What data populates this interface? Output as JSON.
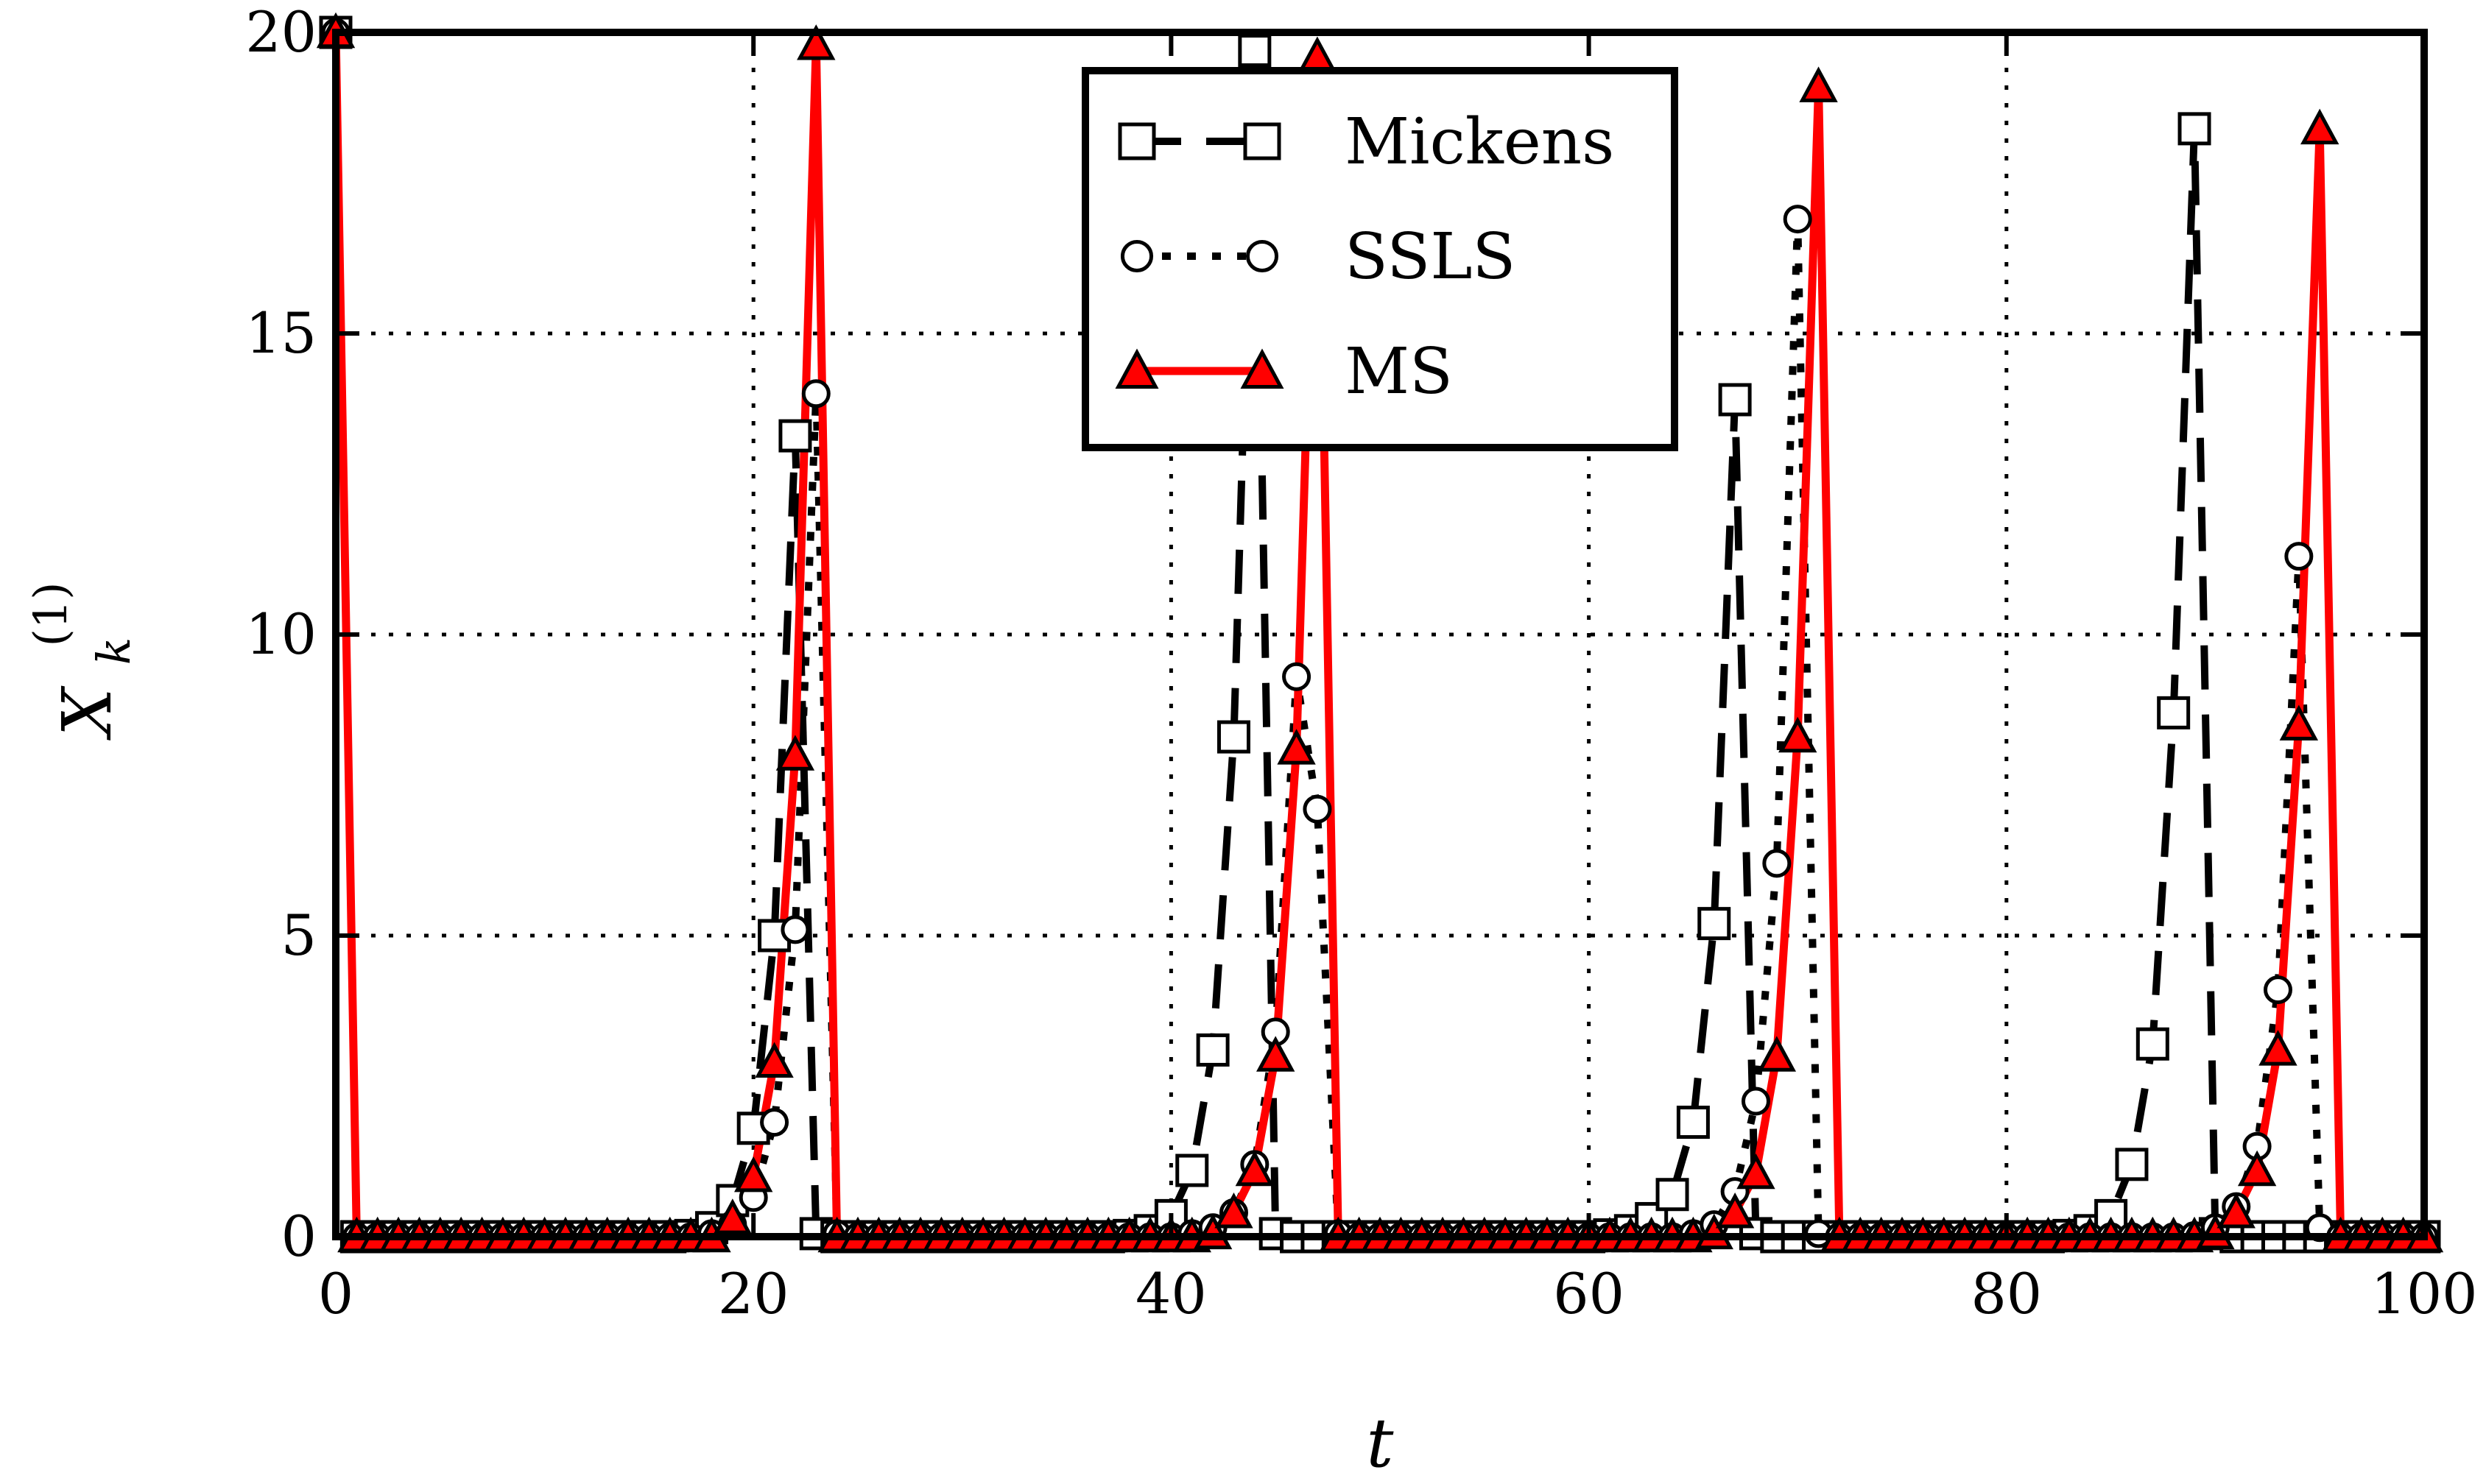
{
  "chart_data": {
    "type": "line",
    "xlabel": "t",
    "ylabel": "X",
    "ylabel_superscript": "(1)",
    "ylabel_subscript": "k",
    "xlim": [
      0,
      100
    ],
    "ylim": [
      0,
      20
    ],
    "xticks": [
      0,
      20,
      40,
      60,
      80,
      100
    ],
    "yticks": [
      0,
      5,
      10,
      15,
      20
    ],
    "grid": true,
    "legend_position": "top-center",
    "series": [
      {
        "name": "Mickens",
        "color": "#000000",
        "marker": "square",
        "linestyle": "dashed",
        "points": [
          [
            0,
            20
          ],
          [
            1,
            0
          ],
          [
            2,
            0
          ],
          [
            3,
            0
          ],
          [
            4,
            0
          ],
          [
            5,
            0
          ],
          [
            6,
            0
          ],
          [
            7,
            0
          ],
          [
            8,
            0
          ],
          [
            9,
            0
          ],
          [
            10,
            0
          ],
          [
            11,
            0
          ],
          [
            12,
            0
          ],
          [
            13,
            0
          ],
          [
            14,
            0
          ],
          [
            15,
            0
          ],
          [
            16,
            0
          ],
          [
            17,
            0.02
          ],
          [
            18,
            0.15
          ],
          [
            19,
            0.6
          ],
          [
            20,
            1.8
          ],
          [
            21,
            5.0
          ],
          [
            22,
            13.3
          ],
          [
            23,
            0.05
          ],
          [
            24,
            0
          ],
          [
            25,
            0
          ],
          [
            26,
            0
          ],
          [
            27,
            0
          ],
          [
            28,
            0
          ],
          [
            29,
            0
          ],
          [
            30,
            0
          ],
          [
            31,
            0
          ],
          [
            32,
            0
          ],
          [
            33,
            0
          ],
          [
            34,
            0
          ],
          [
            35,
            0
          ],
          [
            36,
            0
          ],
          [
            37,
            0
          ],
          [
            38,
            0.02
          ],
          [
            39,
            0.1
          ],
          [
            40,
            0.35
          ],
          [
            41,
            1.1
          ],
          [
            42,
            3.1
          ],
          [
            43,
            8.3
          ],
          [
            44,
            19.7
          ],
          [
            45,
            0.05
          ],
          [
            46,
            0
          ],
          [
            47,
            0
          ],
          [
            48,
            0
          ],
          [
            49,
            0
          ],
          [
            50,
            0
          ],
          [
            51,
            0
          ],
          [
            52,
            0
          ],
          [
            53,
            0
          ],
          [
            54,
            0
          ],
          [
            55,
            0
          ],
          [
            56,
            0
          ],
          [
            57,
            0
          ],
          [
            58,
            0
          ],
          [
            59,
            0
          ],
          [
            60,
            0
          ],
          [
            61,
            0.03
          ],
          [
            62,
            0.1
          ],
          [
            63,
            0.3
          ],
          [
            64,
            0.7
          ],
          [
            65,
            1.9
          ],
          [
            66,
            5.2
          ],
          [
            67,
            13.9
          ],
          [
            68,
            0.05
          ],
          [
            69,
            0
          ],
          [
            70,
            0
          ],
          [
            71,
            0
          ],
          [
            72,
            0
          ],
          [
            73,
            0
          ],
          [
            74,
            0
          ],
          [
            75,
            0
          ],
          [
            76,
            0
          ],
          [
            77,
            0
          ],
          [
            78,
            0
          ],
          [
            79,
            0
          ],
          [
            80,
            0
          ],
          [
            81,
            0
          ],
          [
            82,
            0
          ],
          [
            83,
            0.02
          ],
          [
            84,
            0.1
          ],
          [
            85,
            0.35
          ],
          [
            86,
            1.2
          ],
          [
            87,
            3.2
          ],
          [
            88,
            8.7
          ],
          [
            89,
            18.4
          ],
          [
            90,
            0.05
          ],
          [
            91,
            0
          ],
          [
            92,
            0
          ],
          [
            93,
            0
          ],
          [
            94,
            0
          ],
          [
            95,
            0
          ],
          [
            96,
            0
          ],
          [
            97,
            0
          ],
          [
            98,
            0
          ],
          [
            99,
            0
          ],
          [
            100,
            0
          ]
        ]
      },
      {
        "name": "SSLS",
        "color": "#000000",
        "marker": "circle",
        "linestyle": "dotted",
        "points": [
          [
            0,
            20
          ],
          [
            1,
            0
          ],
          [
            2,
            0
          ],
          [
            3,
            0
          ],
          [
            4,
            0
          ],
          [
            5,
            0
          ],
          [
            6,
            0
          ],
          [
            7,
            0
          ],
          [
            8,
            0
          ],
          [
            9,
            0
          ],
          [
            10,
            0
          ],
          [
            11,
            0
          ],
          [
            12,
            0
          ],
          [
            13,
            0
          ],
          [
            14,
            0
          ],
          [
            15,
            0
          ],
          [
            16,
            0
          ],
          [
            17,
            0
          ],
          [
            18,
            0.05
          ],
          [
            19,
            0.2
          ],
          [
            20,
            0.65
          ],
          [
            21,
            1.9
          ],
          [
            22,
            5.1
          ],
          [
            23,
            14.0
          ],
          [
            24,
            0.05
          ],
          [
            25,
            0
          ],
          [
            26,
            0
          ],
          [
            27,
            0
          ],
          [
            28,
            0
          ],
          [
            29,
            0
          ],
          [
            30,
            0
          ],
          [
            31,
            0
          ],
          [
            32,
            0
          ],
          [
            33,
            0
          ],
          [
            34,
            0
          ],
          [
            35,
            0
          ],
          [
            36,
            0
          ],
          [
            37,
            0
          ],
          [
            38,
            0
          ],
          [
            39,
            0
          ],
          [
            40,
            0
          ],
          [
            41,
            0.05
          ],
          [
            42,
            0.15
          ],
          [
            43,
            0.4
          ],
          [
            44,
            1.2
          ],
          [
            45,
            3.4
          ],
          [
            46,
            9.3
          ],
          [
            47,
            7.1
          ],
          [
            48,
            0.05
          ],
          [
            49,
            0
          ],
          [
            50,
            0
          ],
          [
            51,
            0
          ],
          [
            52,
            0
          ],
          [
            53,
            0
          ],
          [
            54,
            0
          ],
          [
            55,
            0
          ],
          [
            56,
            0
          ],
          [
            57,
            0
          ],
          [
            58,
            0
          ],
          [
            59,
            0
          ],
          [
            60,
            0
          ],
          [
            61,
            0
          ],
          [
            62,
            0
          ],
          [
            63,
            0
          ],
          [
            64,
            0
          ],
          [
            65,
            0.05
          ],
          [
            66,
            0.2
          ],
          [
            67,
            0.75
          ],
          [
            68,
            2.25
          ],
          [
            69,
            6.2
          ],
          [
            70,
            16.9
          ],
          [
            71,
            0.05
          ],
          [
            72,
            0
          ],
          [
            73,
            0
          ],
          [
            74,
            0
          ],
          [
            75,
            0
          ],
          [
            76,
            0
          ],
          [
            77,
            0
          ],
          [
            78,
            0
          ],
          [
            79,
            0
          ],
          [
            80,
            0
          ],
          [
            81,
            0
          ],
          [
            82,
            0
          ],
          [
            83,
            0
          ],
          [
            84,
            0
          ],
          [
            85,
            0
          ],
          [
            86,
            0
          ],
          [
            87,
            0
          ],
          [
            88,
            0
          ],
          [
            89,
            0.02
          ],
          [
            90,
            0.15
          ],
          [
            91,
            0.5
          ],
          [
            92,
            1.5
          ],
          [
            93,
            4.1
          ],
          [
            94,
            11.3
          ],
          [
            95,
            0.15
          ],
          [
            96,
            0
          ],
          [
            97,
            0
          ],
          [
            98,
            0
          ],
          [
            99,
            0
          ],
          [
            100,
            0
          ]
        ]
      },
      {
        "name": "MS",
        "color": "#ff0000",
        "marker": "triangle",
        "linestyle": "solid",
        "points": [
          [
            0,
            20
          ],
          [
            1,
            0
          ],
          [
            2,
            0
          ],
          [
            3,
            0
          ],
          [
            4,
            0
          ],
          [
            5,
            0
          ],
          [
            6,
            0
          ],
          [
            7,
            0
          ],
          [
            8,
            0
          ],
          [
            9,
            0
          ],
          [
            10,
            0
          ],
          [
            11,
            0
          ],
          [
            12,
            0
          ],
          [
            13,
            0
          ],
          [
            14,
            0
          ],
          [
            15,
            0
          ],
          [
            16,
            0
          ],
          [
            17,
            0
          ],
          [
            18,
            0
          ],
          [
            19,
            0.3
          ],
          [
            20,
            1.0
          ],
          [
            21,
            2.9
          ],
          [
            22,
            8.0
          ],
          [
            23,
            19.8
          ],
          [
            24,
            0
          ],
          [
            25,
            0
          ],
          [
            26,
            0
          ],
          [
            27,
            0
          ],
          [
            28,
            0
          ],
          [
            29,
            0
          ],
          [
            30,
            0
          ],
          [
            31,
            0
          ],
          [
            32,
            0
          ],
          [
            33,
            0
          ],
          [
            34,
            0
          ],
          [
            35,
            0
          ],
          [
            36,
            0
          ],
          [
            37,
            0
          ],
          [
            38,
            0
          ],
          [
            39,
            0
          ],
          [
            40,
            0
          ],
          [
            41,
            0
          ],
          [
            42,
            0.05
          ],
          [
            43,
            0.4
          ],
          [
            44,
            1.1
          ],
          [
            45,
            3.0
          ],
          [
            46,
            8.1
          ],
          [
            47,
            19.6
          ],
          [
            48,
            0
          ],
          [
            49,
            0
          ],
          [
            50,
            0
          ],
          [
            51,
            0
          ],
          [
            52,
            0
          ],
          [
            53,
            0
          ],
          [
            54,
            0
          ],
          [
            55,
            0
          ],
          [
            56,
            0
          ],
          [
            57,
            0
          ],
          [
            58,
            0
          ],
          [
            59,
            0
          ],
          [
            60,
            0
          ],
          [
            61,
            0
          ],
          [
            62,
            0
          ],
          [
            63,
            0
          ],
          [
            64,
            0
          ],
          [
            65,
            0
          ],
          [
            66,
            0.05
          ],
          [
            67,
            0.4
          ],
          [
            68,
            1.05
          ],
          [
            69,
            3.0
          ],
          [
            70,
            8.3
          ],
          [
            71,
            19.1
          ],
          [
            72,
            0
          ],
          [
            73,
            0
          ],
          [
            74,
            0
          ],
          [
            75,
            0
          ],
          [
            76,
            0
          ],
          [
            77,
            0
          ],
          [
            78,
            0
          ],
          [
            79,
            0
          ],
          [
            80,
            0
          ],
          [
            81,
            0
          ],
          [
            82,
            0
          ],
          [
            83,
            0
          ],
          [
            84,
            0
          ],
          [
            85,
            0
          ],
          [
            86,
            0
          ],
          [
            87,
            0
          ],
          [
            88,
            0
          ],
          [
            89,
            0
          ],
          [
            90,
            0.05
          ],
          [
            91,
            0.4
          ],
          [
            92,
            1.1
          ],
          [
            93,
            3.1
          ],
          [
            94,
            8.5
          ],
          [
            95,
            18.4
          ],
          [
            96,
            0
          ],
          [
            97,
            0
          ],
          [
            98,
            0
          ],
          [
            99,
            0
          ],
          [
            100,
            0
          ]
        ]
      }
    ]
  }
}
